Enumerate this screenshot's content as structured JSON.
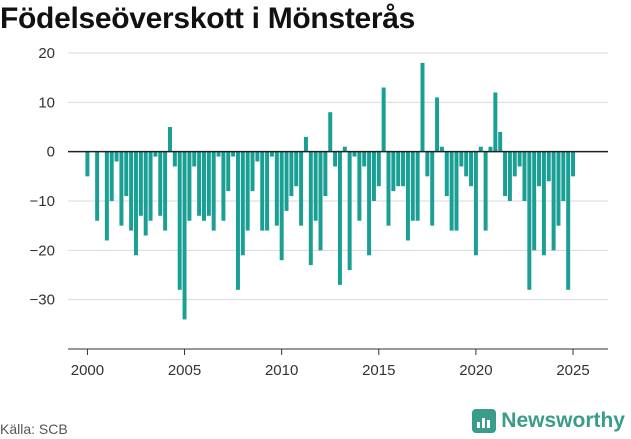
{
  "chart_data": {
    "type": "bar",
    "title": "Födelseöverskott i Mönsterås",
    "xlabel": "",
    "ylabel": "",
    "ylim": [
      -40,
      20
    ],
    "xlim": [
      1999.0,
      2026.8
    ],
    "yticks": [
      20,
      10,
      0,
      -10,
      -20,
      -30
    ],
    "ytick_labels": [
      "20",
      "10",
      "0",
      "−10",
      "−20",
      "−30"
    ],
    "xticks": [
      2000,
      2005,
      2010,
      2015,
      2020,
      2025
    ],
    "xtick_labels": [
      "2000",
      "2005",
      "2010",
      "2015",
      "2020",
      "2025"
    ],
    "grid": true,
    "bar_color": "#1a9f94",
    "zero_line_color": "#222222",
    "series": [
      {
        "x_start": 2000.0,
        "period": "month",
        "step": 0.25,
        "values": [
          -5,
          0,
          -14,
          0,
          -18,
          -10,
          -2,
          -15,
          -9,
          -16,
          -21,
          -13,
          -17,
          -14,
          -1,
          -13,
          -16,
          5,
          -3,
          -28,
          -34,
          -14,
          -3,
          -13,
          -14,
          -13,
          -16,
          -1,
          -14,
          -8,
          -1,
          -28,
          -21,
          -16,
          -8,
          -2,
          -16,
          -16,
          -1,
          -15,
          -22,
          -12,
          -9,
          -7,
          -15,
          3,
          -23,
          -14,
          -20,
          -9,
          8,
          -3,
          -27,
          1,
          -24,
          -1,
          -14,
          -3,
          -21,
          -10,
          -7,
          13,
          -15,
          -8,
          -7,
          -7,
          -18,
          -14,
          -14,
          18,
          -5,
          -15,
          11,
          1,
          -9,
          -16,
          -16,
          -3,
          -5,
          -7,
          -21,
          1,
          -16,
          1,
          12,
          4,
          -9,
          -10,
          -5,
          -3,
          -10,
          -28,
          -20,
          -7,
          -21,
          -6,
          -20,
          -15,
          -10,
          -28,
          -5
        ]
      }
    ]
  },
  "source_text": "Källa: SCB",
  "brand": {
    "name": "Newsworthy",
    "color": "#3a9c8a"
  }
}
